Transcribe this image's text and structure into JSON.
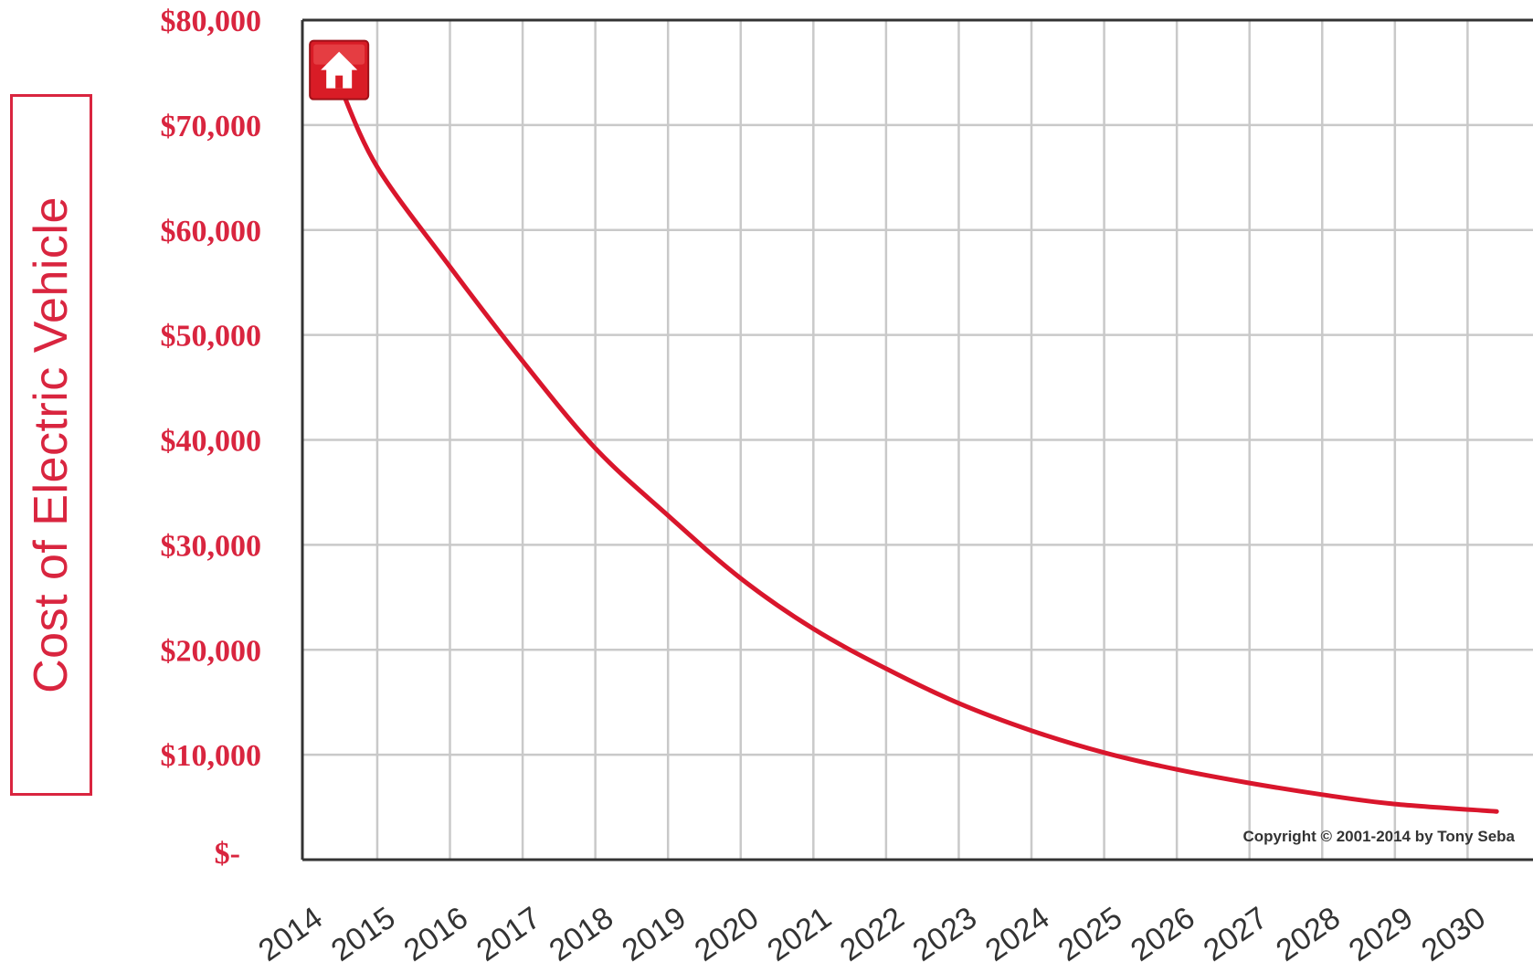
{
  "chart_data": {
    "type": "line",
    "ylabel": "Cost of Electric Vehicle",
    "xlabel": "",
    "title": "",
    "x": [
      2014,
      2015,
      2016,
      2017,
      2018,
      2019,
      2020,
      2021,
      2022,
      2023,
      2024,
      2025,
      2026,
      2027,
      2028,
      2029,
      2030
    ],
    "x_tick_labels": [
      "2014",
      "2015",
      "2016",
      "2017",
      "2018",
      "2019",
      "2020",
      "2021",
      "2022",
      "2023",
      "2024",
      "2025",
      "2026",
      "2027",
      "2028",
      "2029",
      "2030"
    ],
    "y_tick_labels": [
      "$-",
      "$10,000",
      "$20,000",
      "$30,000",
      "$40,000",
      "$50,000",
      "$60,000",
      "$70,000",
      "$80,000"
    ],
    "y_ticks": [
      0,
      10000,
      20000,
      30000,
      40000,
      50000,
      60000,
      70000,
      80000
    ],
    "series": [
      {
        "color": "#d9162c",
        "x": [
          2014.5,
          2015,
          2016,
          2017,
          2018,
          2019,
          2020,
          2021,
          2022,
          2023,
          2024,
          2025,
          2026,
          2027,
          2028,
          2029,
          2030.4
        ],
        "values": [
          73500,
          66000,
          56500,
          47500,
          39200,
          32800,
          26800,
          22000,
          18200,
          14900,
          12300,
          10200,
          8600,
          7300,
          6200,
          5300,
          4600
        ]
      }
    ],
    "xlim": [
      2013.97,
      2030.9
    ],
    "ylim": [
      0,
      80000
    ],
    "grid": true,
    "legend": "none",
    "annotations": [
      {
        "text": "Copyright © 2001-2014 by Tony Seba",
        "position": "bottom-right"
      }
    ],
    "marker_icon": "house-icon"
  },
  "colors": {
    "accent": "#d9253f",
    "line": "#d9162c",
    "grid": "#c9c9c9",
    "axis": "#333333"
  }
}
